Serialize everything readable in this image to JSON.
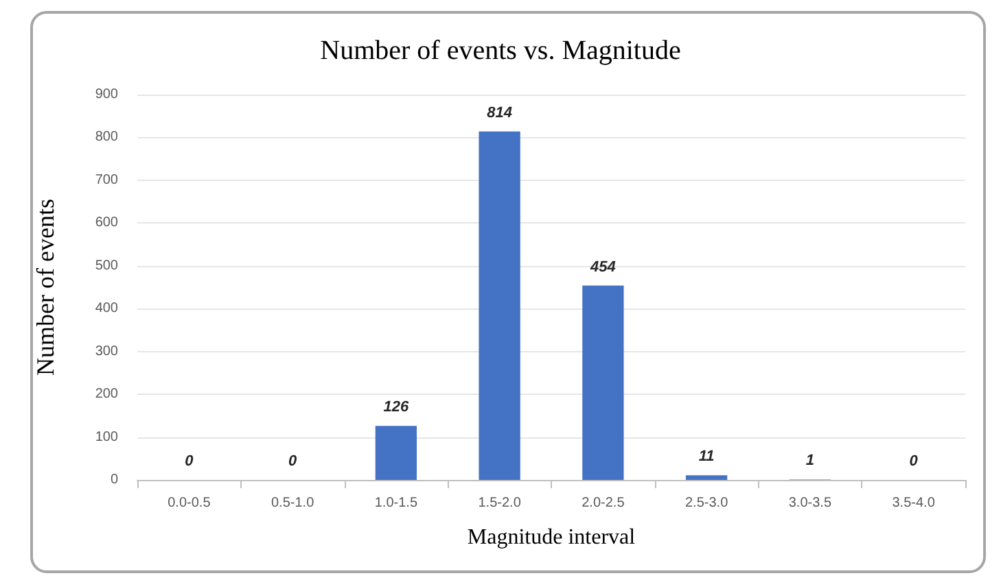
{
  "chart_data": {
    "type": "bar",
    "title": "Number of events vs. Magnitude",
    "xlabel": "Magnitude interval",
    "ylabel": "Number of events",
    "categories": [
      "0.0-0.5",
      "0.5-1.0",
      "1.0-1.5",
      "1.5-2.0",
      "2.0-2.5",
      "2.5-3.0",
      "3.0-3.5",
      "3.5-4.0"
    ],
    "values": [
      0,
      0,
      126,
      814,
      454,
      11,
      1,
      0
    ],
    "color": "#4472c4",
    "ylim": [
      0,
      900
    ],
    "yticks": [
      0,
      100,
      200,
      300,
      400,
      500,
      600,
      700,
      800,
      900
    ],
    "grid": "y",
    "data_labels": true
  }
}
